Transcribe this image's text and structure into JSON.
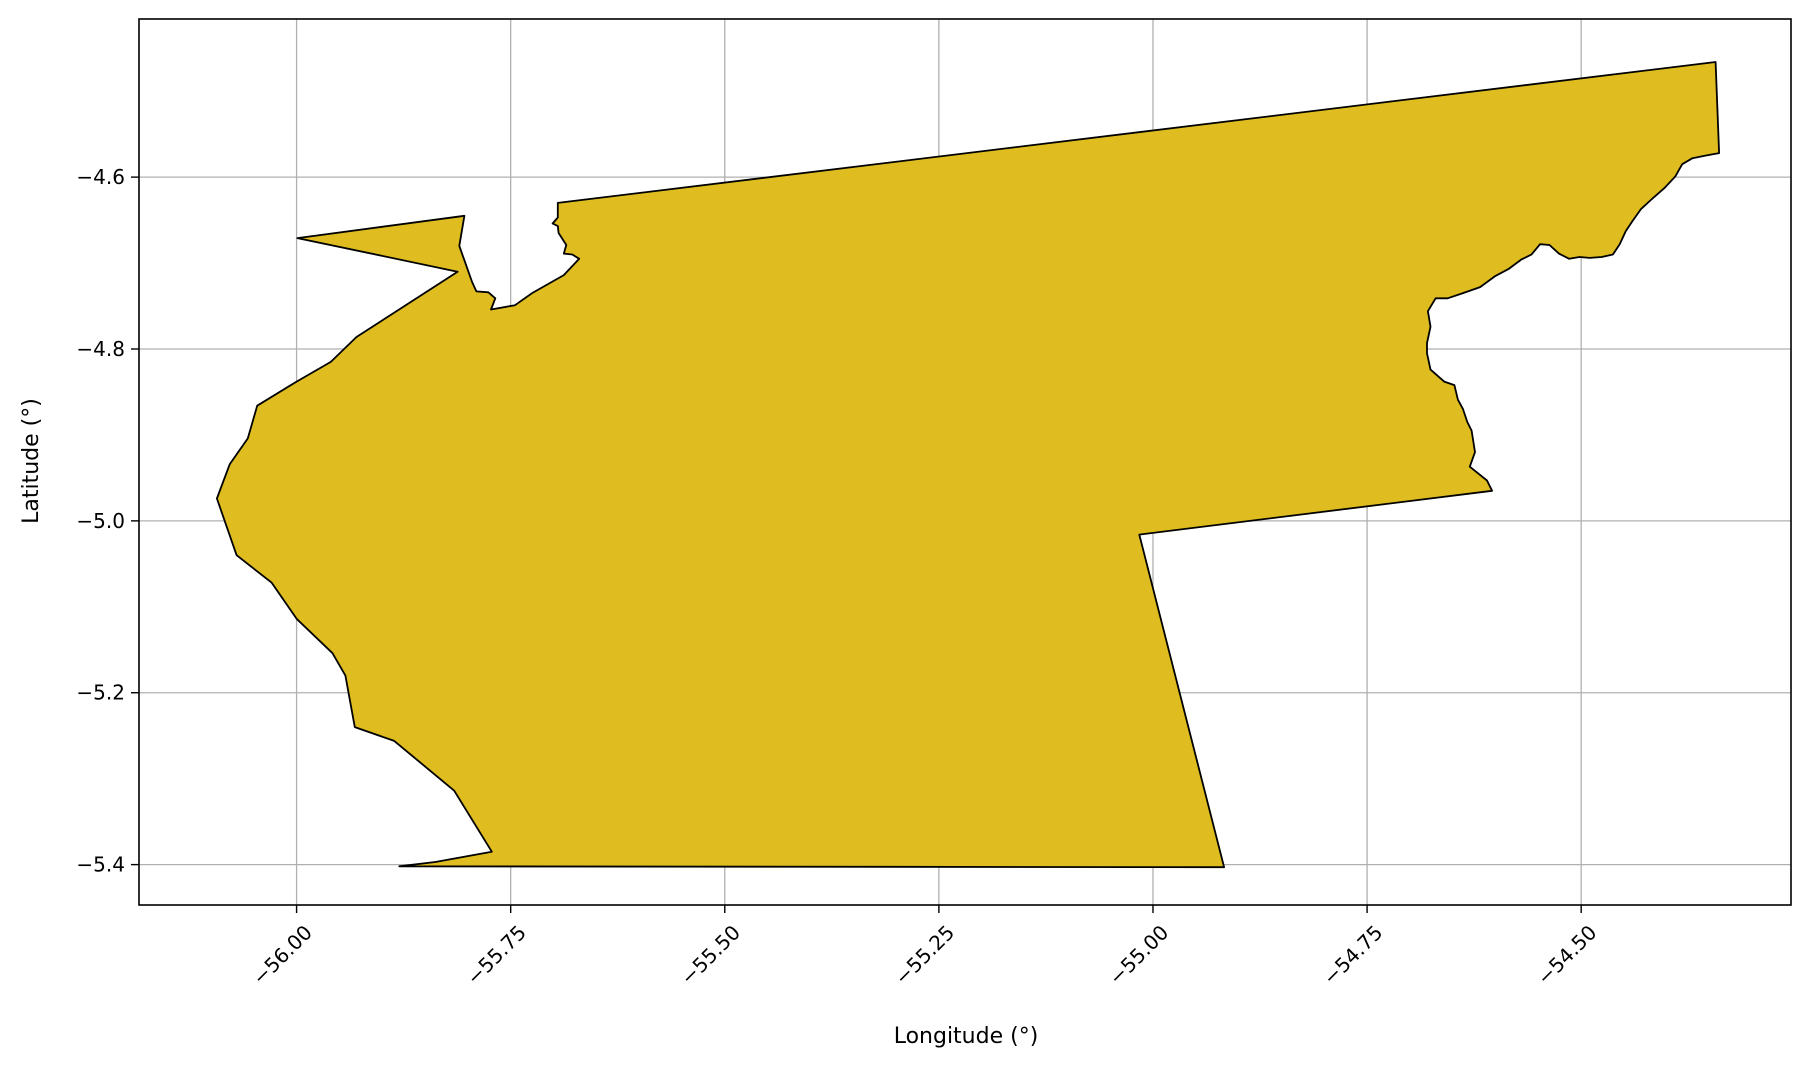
{
  "chart_data": {
    "type": "map",
    "title": "",
    "xlabel": "Longitude (°)",
    "ylabel": "Latitude (°)",
    "xlim": [
      -56.184,
      -54.255
    ],
    "ylim": [
      -5.447,
      -4.416
    ],
    "x_ticks": [
      -56.0,
      -55.75,
      -55.5,
      -55.25,
      -55.0,
      -54.75,
      -54.5
    ],
    "x_tick_labels": [
      "−56.00",
      "−55.75",
      "−55.50",
      "−55.25",
      "−55.00",
      "−54.75",
      "−54.50"
    ],
    "y_ticks": [
      -4.6,
      -4.8,
      -5.0,
      -5.2,
      -5.4
    ],
    "y_tick_labels": [
      "−4.6",
      "−4.8",
      "−5.0",
      "−5.2",
      "−5.4"
    ],
    "grid": true,
    "fill_color": "#dfbc1f",
    "edge_color": "#000000",
    "polygon": [
      [
        -55.88,
        -5.402
      ],
      [
        -55.838,
        -5.397
      ],
      [
        -55.772,
        -5.385
      ],
      [
        -55.816,
        -5.314
      ],
      [
        -55.886,
        -5.256
      ],
      [
        -55.932,
        -5.24
      ],
      [
        -55.943,
        -5.18
      ],
      [
        -55.958,
        -5.154
      ],
      [
        -56.0,
        -5.114
      ],
      [
        -56.029,
        -5.072
      ],
      [
        -56.07,
        -5.04
      ],
      [
        -56.093,
        -4.974
      ],
      [
        -56.078,
        -4.934
      ],
      [
        -56.057,
        -4.904
      ],
      [
        -56.046,
        -4.866
      ],
      [
        -56.0,
        -4.838
      ],
      [
        -55.96,
        -4.815
      ],
      [
        -55.93,
        -4.786
      ],
      [
        -55.812,
        -4.71
      ],
      [
        -55.999,
        -4.671
      ],
      [
        -55.804,
        -4.645
      ],
      [
        -55.81,
        -4.68
      ],
      [
        -55.795,
        -4.722
      ],
      [
        -55.79,
        -4.733
      ],
      [
        -55.776,
        -4.734
      ],
      [
        -55.768,
        -4.741
      ],
      [
        -55.773,
        -4.754
      ],
      [
        -55.745,
        -4.749
      ],
      [
        -55.725,
        -4.735
      ],
      [
        -55.688,
        -4.714
      ],
      [
        -55.67,
        -4.695
      ],
      [
        -55.678,
        -4.69
      ],
      [
        -55.688,
        -4.689
      ],
      [
        -55.685,
        -4.679
      ],
      [
        -55.694,
        -4.665
      ],
      [
        -55.695,
        -4.657
      ],
      [
        -55.701,
        -4.654
      ],
      [
        -55.695,
        -4.647
      ],
      [
        -55.695,
        -4.63
      ],
      [
        -54.343,
        -4.466
      ],
      [
        -54.339,
        -4.572
      ],
      [
        -54.355,
        -4.575
      ],
      [
        -54.37,
        -4.578
      ],
      [
        -54.382,
        -4.585
      ],
      [
        -54.39,
        -4.599
      ],
      [
        -54.402,
        -4.612
      ],
      [
        -54.418,
        -4.626
      ],
      [
        -54.43,
        -4.637
      ],
      [
        -54.44,
        -4.651
      ],
      [
        -54.448,
        -4.663
      ],
      [
        -54.455,
        -4.678
      ],
      [
        -54.463,
        -4.69
      ],
      [
        -54.476,
        -4.693
      ],
      [
        -54.49,
        -4.694
      ],
      [
        -54.502,
        -4.693
      ],
      [
        -54.514,
        -4.695
      ],
      [
        -54.526,
        -4.689
      ],
      [
        -54.537,
        -4.679
      ],
      [
        -54.548,
        -4.678
      ],
      [
        -54.558,
        -4.69
      ],
      [
        -54.57,
        -4.696
      ],
      [
        -54.585,
        -4.707
      ],
      [
        -54.6,
        -4.715
      ],
      [
        -54.618,
        -4.728
      ],
      [
        -54.638,
        -4.735
      ],
      [
        -54.656,
        -4.741
      ],
      [
        -54.67,
        -4.741
      ],
      [
        -54.679,
        -4.756
      ],
      [
        -54.676,
        -4.774
      ],
      [
        -54.68,
        -4.793
      ],
      [
        -54.68,
        -4.805
      ],
      [
        -54.676,
        -4.824
      ],
      [
        -54.66,
        -4.838
      ],
      [
        -54.648,
        -4.842
      ],
      [
        -54.644,
        -4.859
      ],
      [
        -54.638,
        -4.87
      ],
      [
        -54.633,
        -4.885
      ],
      [
        -54.628,
        -4.895
      ],
      [
        -54.624,
        -4.92
      ],
      [
        -54.63,
        -4.937
      ],
      [
        -54.61,
        -4.953
      ],
      [
        -54.604,
        -4.965
      ],
      [
        -55.016,
        -5.016
      ],
      [
        -54.917,
        -5.403
      ],
      [
        -55.88,
        -5.402
      ]
    ]
  }
}
